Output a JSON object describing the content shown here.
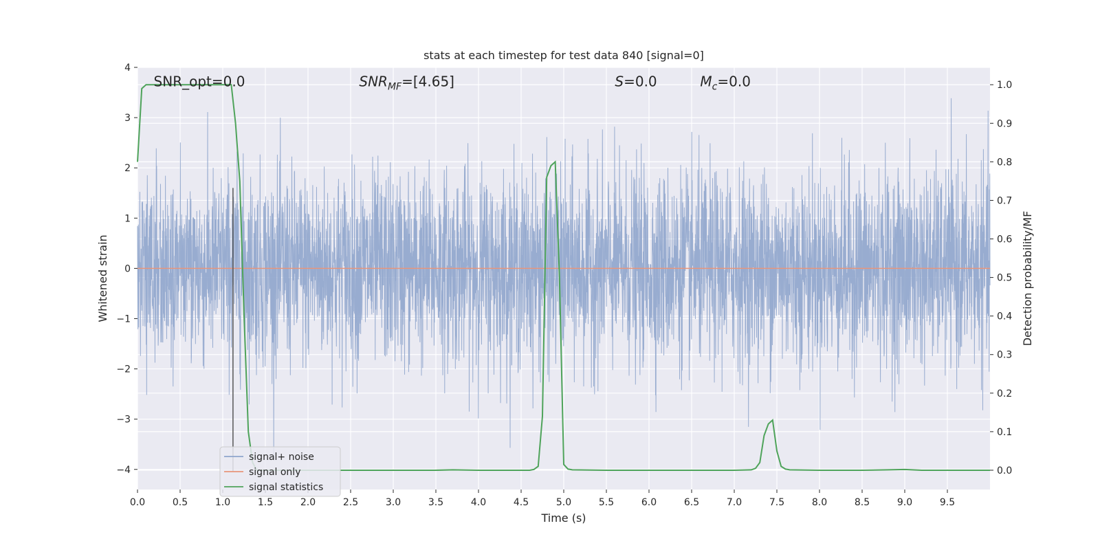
{
  "chart_data": {
    "type": "line",
    "title": "stats at each timestep for test data 840 [signal=0]",
    "xlabel": "Time (s)",
    "ylabel_left": "Whitened strain",
    "ylabel_right": "Detection probability/MF",
    "xlim": [
      0,
      10
    ],
    "ylim_left": [
      -4.4,
      4
    ],
    "ylim_right": [
      -0.05,
      1.045
    ],
    "x_ticks": [
      "0.0",
      "0.5",
      "1.0",
      "1.5",
      "2.0",
      "2.5",
      "3.0",
      "3.5",
      "4.0",
      "4.5",
      "5.0",
      "5.5",
      "6.0",
      "6.5",
      "7.0",
      "7.5",
      "8.0",
      "8.5",
      "9.0",
      "9.5"
    ],
    "y_ticks_left": [
      "4",
      "3",
      "2",
      "1",
      "0",
      "−1",
      "−2",
      "−3",
      "−4"
    ],
    "y_ticks_right": [
      "1.0",
      "0.9",
      "0.8",
      "0.7",
      "0.6",
      "0.5",
      "0.4",
      "0.3",
      "0.2",
      "0.1",
      "0.0"
    ],
    "grid": true,
    "legend_position": "lower-left",
    "annotations": [
      {
        "label": "SNR_opt=0.0",
        "x": 0.19,
        "y": 3.72
      },
      {
        "label": "SNR",
        "sub": "MF",
        "rest": "=[4.65]",
        "x": 2.6,
        "y": 3.72
      },
      {
        "label": "S",
        "rest": "=0.0",
        "x": 5.6,
        "y": 3.72
      },
      {
        "label": "M",
        "sub": "c",
        "rest": "=0.0",
        "x": 6.6,
        "y": 3.72
      }
    ],
    "marker_line": {
      "x": 1.12,
      "color": "#555555"
    },
    "series": [
      {
        "name": "signal+ noise",
        "color": "#8fa5cc",
        "axis": "left",
        "noise_std": 0.95,
        "duration": 10
      },
      {
        "name": "signal only",
        "color": "#e8957a",
        "axis": "left",
        "x": [
          0,
          10
        ],
        "y": [
          0,
          0
        ]
      },
      {
        "name": "signal statistics",
        "color": "#4ea35a",
        "axis": "right",
        "x": [
          0,
          0.05,
          0.1,
          0.2,
          0.4,
          0.6,
          0.8,
          1.0,
          1.1,
          1.15,
          1.2,
          1.25,
          1.3,
          1.35,
          1.4,
          1.5,
          2.0,
          2.5,
          3.0,
          3.5,
          3.7,
          4.0,
          4.5,
          4.6,
          4.65,
          4.7,
          4.75,
          4.8,
          4.85,
          4.9,
          4.95,
          5.0,
          5.05,
          5.1,
          5.5,
          6.0,
          6.5,
          7.0,
          7.2,
          7.25,
          7.3,
          7.35,
          7.4,
          7.45,
          7.5,
          7.55,
          7.6,
          7.65,
          8.0,
          8.5,
          8.8,
          9.0,
          9.2,
          9.5,
          10.0
        ],
        "y": [
          0.8,
          0.99,
          1.0,
          1.0,
          1.0,
          1.0,
          1.0,
          1.0,
          1.0,
          0.9,
          0.75,
          0.4,
          0.1,
          0.02,
          0.0,
          0.0,
          0.0,
          0.0,
          0.0,
          0.0,
          0.001,
          0.0,
          0.0,
          0.0,
          0.002,
          0.01,
          0.14,
          0.76,
          0.79,
          0.8,
          0.5,
          0.015,
          0.003,
          0.001,
          0.0,
          0.0,
          0.0,
          0.0,
          0.001,
          0.005,
          0.02,
          0.09,
          0.12,
          0.13,
          0.05,
          0.01,
          0.003,
          0.001,
          0.0,
          0.0,
          0.001,
          0.002,
          0.0,
          0.0,
          0.0
        ]
      }
    ]
  }
}
